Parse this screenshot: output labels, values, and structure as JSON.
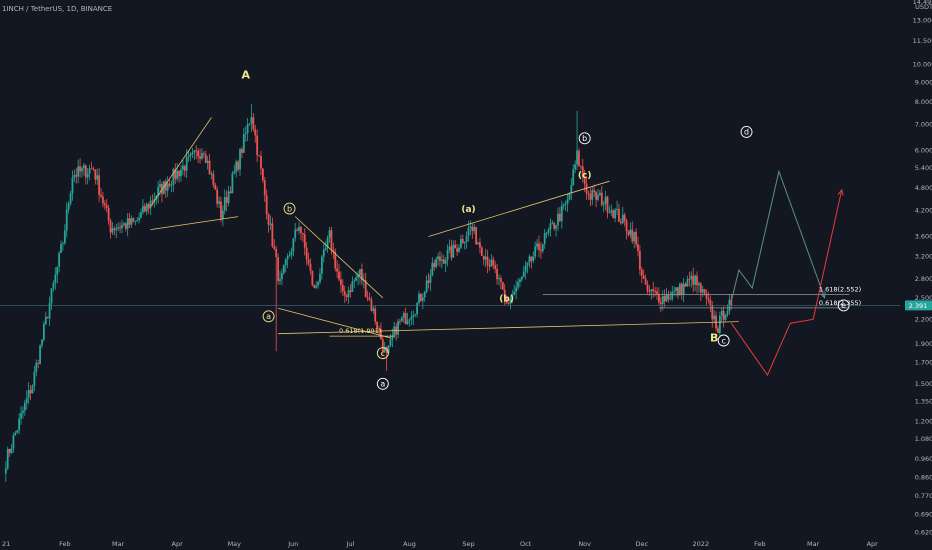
{
  "header": {
    "title": "1INCH / TetherUS, 1D, BINANCE"
  },
  "colors": {
    "background": "#131722",
    "up": "#26a69a",
    "down": "#ef5350",
    "trendline": "#e6c46b",
    "label": "#f0e68c",
    "white": "#ffffff",
    "projection_up": "#5a8f87",
    "projection_down": "#e83a3a",
    "fib_line": "#9598a1",
    "price_badge": "#26a69a"
  },
  "chart_data": {
    "type": "candlestick",
    "scale": "log",
    "ylim": [
      0.6,
      14.5
    ],
    "y_axis_ticks": [
      "14.495",
      "USDT",
      "13.000",
      "11.500",
      "10.000",
      "9.000",
      "8.000",
      "7.000",
      "6.000",
      "5.400",
      "4.800",
      "4.200",
      "3.600",
      "3.200",
      "2.800",
      "2.500",
      "2.200",
      "1.900",
      "1.700",
      "1.500",
      "1.350",
      "1.200",
      "1.080",
      "0.960",
      "0.860",
      "0.770",
      "0.690",
      "0.620"
    ],
    "x_axis_ticks": [
      "21",
      "Feb",
      "Mar",
      "Apr",
      "May",
      "Jun",
      "Jul",
      "Aug",
      "Sep",
      "Oct",
      "Nov",
      "Dec",
      "2022",
      "Feb",
      "Mar",
      "Apr"
    ],
    "current_price": "2.391",
    "fib_levels": [
      {
        "label": "1.618(2.552)",
        "value": 2.552
      },
      {
        "label": "0.618(2.355)",
        "value": 2.355
      },
      {
        "label": "0.618(1.991)",
        "value": 1.991
      }
    ],
    "price_path_anchors": [
      {
        "date": "2021-01-01",
        "value": 0.95
      },
      {
        "date": "2021-01-15",
        "value": 1.5
      },
      {
        "date": "2021-01-31",
        "value": 3.5
      },
      {
        "date": "2021-02-05",
        "value": 5.2
      },
      {
        "date": "2021-02-16",
        "value": 5.4
      },
      {
        "date": "2021-02-25",
        "value": 3.8
      },
      {
        "date": "2021-03-10",
        "value": 3.9
      },
      {
        "date": "2021-03-22",
        "value": 4.7
      },
      {
        "date": "2021-04-05",
        "value": 5.5
      },
      {
        "date": "2021-04-15",
        "value": 6.1
      },
      {
        "date": "2021-04-24",
        "value": 4.1
      },
      {
        "date": "2021-05-03",
        "value": 5.6
      },
      {
        "date": "2021-05-10",
        "value": 7.5
      },
      {
        "date": "2021-05-19",
        "value": 4.0
      },
      {
        "date": "2021-05-25",
        "value": 2.7
      },
      {
        "date": "2021-06-04",
        "value": 3.9
      },
      {
        "date": "2021-06-12",
        "value": 2.6
      },
      {
        "date": "2021-06-20",
        "value": 3.6
      },
      {
        "date": "2021-06-27",
        "value": 2.5
      },
      {
        "date": "2021-07-06",
        "value": 2.9
      },
      {
        "date": "2021-07-13",
        "value": 2.3
      },
      {
        "date": "2021-07-20",
        "value": 1.75
      },
      {
        "date": "2021-07-25",
        "value": 2.1
      },
      {
        "date": "2021-08-05",
        "value": 2.4
      },
      {
        "date": "2021-08-15",
        "value": 3.1
      },
      {
        "date": "2021-08-24",
        "value": 3.3
      },
      {
        "date": "2021-09-02",
        "value": 3.8
      },
      {
        "date": "2021-09-06",
        "value": 3.5
      },
      {
        "date": "2021-09-15",
        "value": 2.9
      },
      {
        "date": "2021-09-21",
        "value": 2.4
      },
      {
        "date": "2021-09-29",
        "value": 2.8
      },
      {
        "date": "2021-10-05",
        "value": 3.2
      },
      {
        "date": "2021-10-15",
        "value": 3.8
      },
      {
        "date": "2021-10-23",
        "value": 4.4
      },
      {
        "date": "2021-10-28",
        "value": 5.8
      },
      {
        "date": "2021-11-03",
        "value": 4.6
      },
      {
        "date": "2021-11-10",
        "value": 4.5
      },
      {
        "date": "2021-11-20",
        "value": 4.0
      },
      {
        "date": "2021-11-27",
        "value": 3.6
      },
      {
        "date": "2021-12-03",
        "value": 2.6
      },
      {
        "date": "2021-12-12",
        "value": 2.5
      },
      {
        "date": "2021-12-20",
        "value": 2.6
      },
      {
        "date": "2021-12-28",
        "value": 2.8
      },
      {
        "date": "2022-01-03",
        "value": 2.5
      },
      {
        "date": "2022-01-10",
        "value": 2.1
      },
      {
        "date": "2022-01-14",
        "value": 2.35
      },
      {
        "date": "2022-01-17",
        "value": 2.39
      }
    ],
    "projections": [
      {
        "color": "projection_up",
        "points": [
          {
            "date": "2022-01-17",
            "value": 2.45
          },
          {
            "date": "2022-01-21",
            "value": 2.95
          },
          {
            "date": "2022-01-28",
            "value": 2.65
          },
          {
            "date": "2022-02-11",
            "value": 5.3
          },
          {
            "date": "2022-03-07",
            "value": 2.5
          }
        ]
      },
      {
        "color": "projection_down",
        "points": [
          {
            "date": "2022-01-17",
            "value": 2.15
          },
          {
            "date": "2022-02-05",
            "value": 1.58
          },
          {
            "date": "2022-02-17",
            "value": 2.15
          },
          {
            "date": "2022-03-01",
            "value": 2.2
          },
          {
            "date": "2022-03-16",
            "value": 4.75
          }
        ]
      }
    ],
    "trendlines": [
      {
        "from": {
          "date": "2021-03-18",
          "value": 4.3
        },
        "to": {
          "date": "2021-04-19",
          "value": 7.3
        }
      },
      {
        "from": {
          "date": "2021-03-18",
          "value": 3.75
        },
        "to": {
          "date": "2021-05-03",
          "value": 4.05
        }
      },
      {
        "from": {
          "date": "2021-06-02",
          "value": 4.05
        },
        "to": {
          "date": "2021-07-18",
          "value": 2.5
        }
      },
      {
        "from": {
          "date": "2021-05-24",
          "value": 2.35
        },
        "to": {
          "date": "2021-07-22",
          "value": 1.97
        }
      },
      {
        "from": {
          "date": "2021-05-24",
          "value": 2.02
        },
        "to": {
          "date": "2022-01-21",
          "value": 2.17
        }
      },
      {
        "from": {
          "date": "2021-08-11",
          "value": 3.6
        },
        "to": {
          "date": "2021-11-14",
          "value": 5.0
        }
      }
    ],
    "wave_labels": [
      {
        "text": "A",
        "circled": false,
        "color": "label",
        "date": "2021-05-07",
        "value": 9.4
      },
      {
        "text": "B",
        "circled": false,
        "color": "label",
        "date": "2022-01-08",
        "value": 1.97
      },
      {
        "text": "b",
        "circled": true,
        "color": "label",
        "date": "2021-05-30",
        "value": 4.25
      },
      {
        "text": "a",
        "circled": true,
        "color": "label",
        "date": "2021-05-19",
        "value": 2.24
      },
      {
        "text": "c",
        "circled": true,
        "color": "label",
        "date": "2021-07-18",
        "value": 1.8
      },
      {
        "text": "a",
        "circled": true,
        "color": "white",
        "date": "2021-07-18",
        "value": 1.5
      },
      {
        "text": "(a)",
        "circled": false,
        "color": "label",
        "date": "2021-09-01",
        "value": 4.25
      },
      {
        "text": "(b)",
        "circled": false,
        "color": "label",
        "date": "2021-09-21",
        "value": 2.5
      },
      {
        "text": "b",
        "circled": true,
        "color": "white",
        "date": "2021-11-01",
        "value": 6.45
      },
      {
        "text": "(c)",
        "circled": false,
        "color": "label",
        "date": "2021-11-01",
        "value": 5.2
      },
      {
        "text": "c",
        "circled": true,
        "color": "white",
        "date": "2022-01-13",
        "value": 1.94
      },
      {
        "text": "d",
        "circled": true,
        "color": "white",
        "date": "2022-01-25",
        "value": 6.7
      },
      {
        "text": "e",
        "circled": true,
        "color": "white",
        "date": "2022-03-17",
        "value": 2.39
      }
    ]
  }
}
